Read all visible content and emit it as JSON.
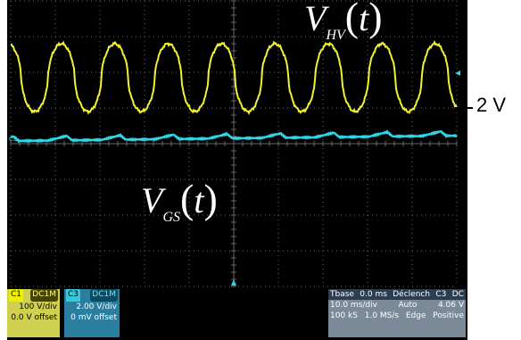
{
  "labels": {
    "vhv_main": "V",
    "vhv_sub": "HV",
    "vgs_main": "V",
    "vgs_sub": "GS",
    "t": "t",
    "open": "(",
    "close": ")"
  },
  "scale": {
    "text": "2 V"
  },
  "markers": {
    "ch1_marker": "C1",
    "ch3_marker": "C3"
  },
  "ch1": {
    "id": "C1",
    "coupling": "DC1M",
    "vdiv": "100 V/div",
    "offset": "0.0 V offset"
  },
  "ch3": {
    "id": "C3",
    "coupling": "DC1M",
    "vdiv": "2.00 V/div",
    "offset": "0 mV offset"
  },
  "timebase": {
    "tbase_label": "Tbase",
    "tbase_value": "0.0 ms",
    "time_div": "10.0 ms/div",
    "samples": "100 kS",
    "rate": "1.0 MS/s"
  },
  "trigger": {
    "label": "Déclench",
    "source": "C3",
    "coupling": "DC",
    "mode": "Auto",
    "type": "Edge",
    "level": "4.06 V",
    "slope": "Positive"
  },
  "colors": {
    "ch1": "#f2f230",
    "ch3": "#2fd6e6",
    "grid": "#666666"
  }
}
